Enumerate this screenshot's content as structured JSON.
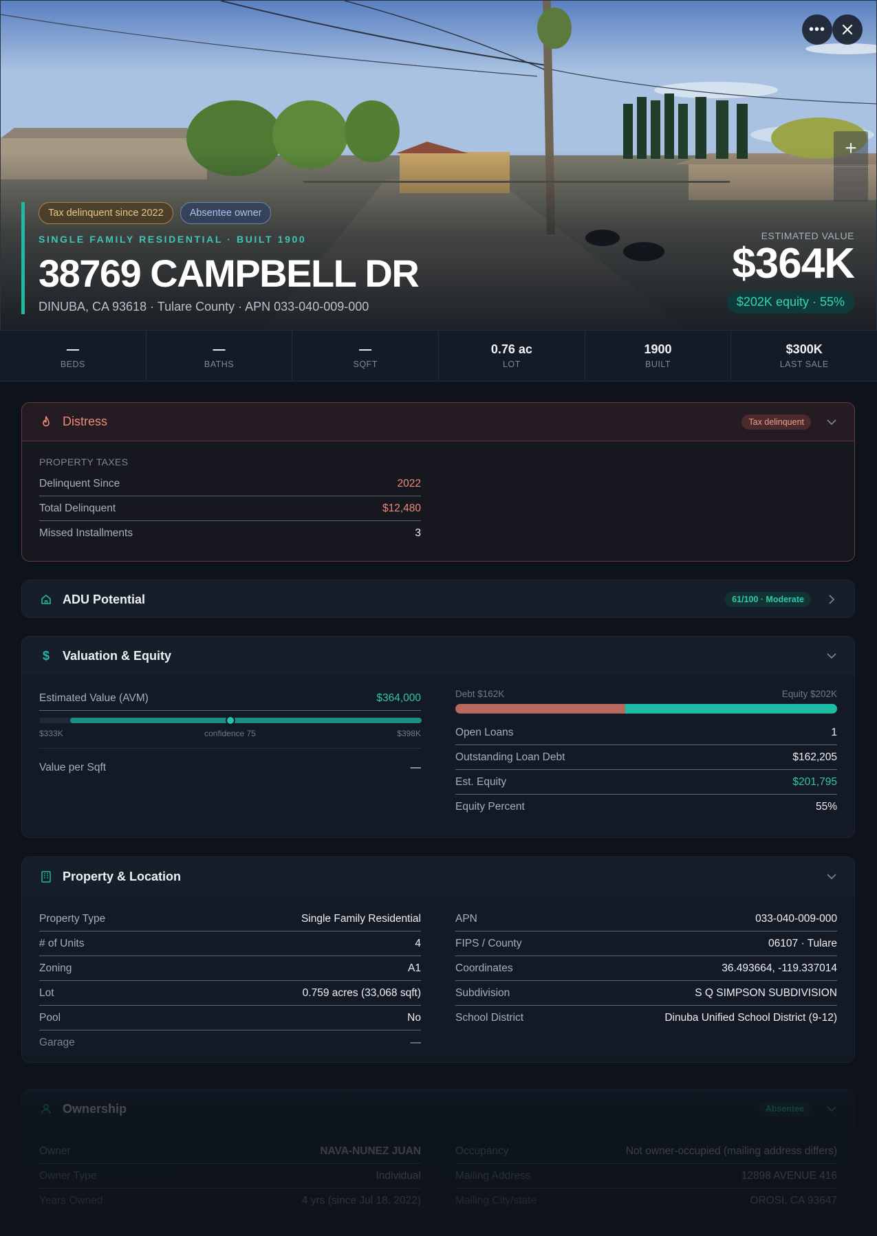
{
  "hero": {
    "badges": [
      "Tax delinquent since 2022",
      "Absentee owner"
    ],
    "kicker": "SINGLE FAMILY RESIDENTIAL · BUILT 1900",
    "address": "38769 CAMPBELL DR",
    "subaddress": "DINUBA, CA 93618 · Tulare County · APN 033-040-009-000",
    "estimated_label": "ESTIMATED VALUE",
    "estimated_value": "$364K",
    "equity_badge": "$202K equity · 55%",
    "more_icon": "more-horizontal-icon",
    "close_icon": "close-icon"
  },
  "stats": [
    {
      "value": "—",
      "label": "BEDS"
    },
    {
      "value": "—",
      "label": "BATHS"
    },
    {
      "value": "—",
      "label": "SQFT"
    },
    {
      "value": "0.76 ac",
      "label": "LOT"
    },
    {
      "value": "1900",
      "label": "BUILT"
    },
    {
      "value": "$300K",
      "label": "LAST SALE"
    }
  ],
  "distress": {
    "title": "Distress",
    "badge": "Tax delinquent",
    "section": "PROPERTY TAXES",
    "rows": [
      {
        "k": "Delinquent Since",
        "v": "2022"
      },
      {
        "k": "Total Delinquent",
        "v": "$12,480"
      },
      {
        "k": "Missed Installments",
        "v": "3"
      }
    ]
  },
  "adu": {
    "title": "ADU Potential",
    "badge": "61/100 · Moderate"
  },
  "valuation": {
    "title": "Valuation & Equity",
    "avm_label": "Estimated Value (AVM)",
    "avm_value": "$364,000",
    "range_low": "$333K",
    "range_mid": "confidence 75",
    "range_high": "$398K",
    "vps_label": "Value per Sqft",
    "vps_value": "—",
    "debt_label": "Debt $162K",
    "equity_label": "Equity $202K",
    "debt_fraction": 0.445,
    "rows": [
      {
        "k": "Open Loans",
        "v": "1"
      },
      {
        "k": "Outstanding Loan Debt",
        "v": "$162,205"
      },
      {
        "k": "Est. Equity",
        "v": "$201,795"
      },
      {
        "k": "Equity Percent",
        "v": "55%"
      }
    ]
  },
  "property": {
    "title": "Property & Location",
    "left": [
      {
        "k": "Property Type",
        "v": "Single Family Residential"
      },
      {
        "k": "# of Units",
        "v": "4"
      },
      {
        "k": "Zoning",
        "v": "A1"
      },
      {
        "k": "Lot",
        "v": "0.759 acres (33,068 sqft)"
      },
      {
        "k": "Pool",
        "v": "No"
      },
      {
        "k": "Garage",
        "v": "—"
      }
    ],
    "right": [
      {
        "k": "APN",
        "v": "033-040-009-000"
      },
      {
        "k": "FIPS / County",
        "v": "06107 · Tulare"
      },
      {
        "k": "Coordinates",
        "v": "36.493664, -119.337014"
      },
      {
        "k": "Subdivision",
        "v": "S Q SIMPSON SUBDIVISION"
      },
      {
        "k": "School District",
        "v": "Dinuba Unified School District (9-12)"
      }
    ]
  },
  "ownership": {
    "title": "Ownership",
    "badge": "Absentee",
    "left": [
      {
        "k": "Owner",
        "v": "NAVA-NUNEZ JUAN"
      },
      {
        "k": "Owner Type",
        "v": "Individual"
      },
      {
        "k": "Years Owned",
        "v": "4 yrs (since Jul 18, 2022)"
      }
    ],
    "right": [
      {
        "k": "Occupancy",
        "v": "Not owner-occupied (mailing address differs)"
      },
      {
        "k": "Mailing Address",
        "v": "12898 AVENUE 416"
      },
      {
        "k": "Mailing City/state",
        "v": "OROSI, CA 93647"
      }
    ]
  },
  "colors": {
    "accent": "#26b7a2",
    "distress": "#ef8a78",
    "debt": "#b8695e",
    "equity": "#1fbca5"
  }
}
